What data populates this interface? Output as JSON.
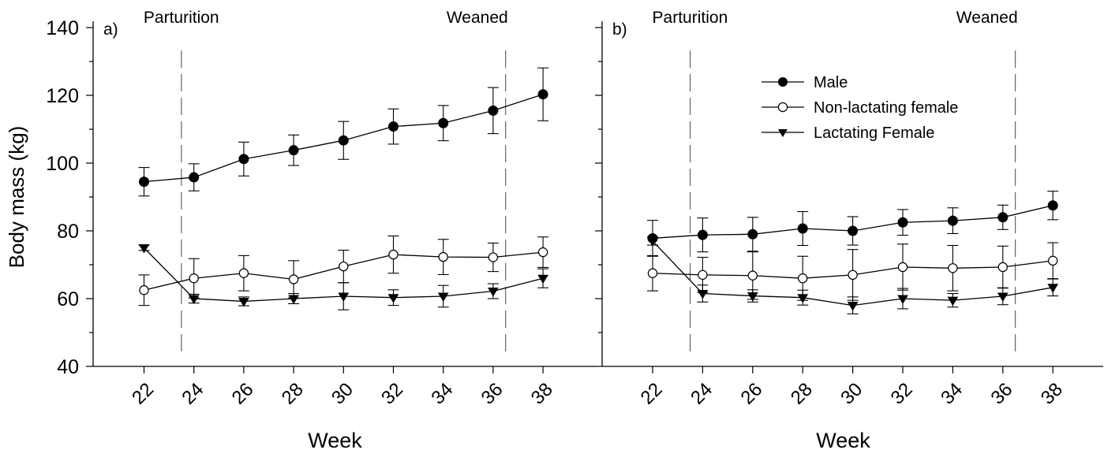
{
  "figure": {
    "ylabel": "Body mass (kg)"
  },
  "chart_data": [
    {
      "type": "line",
      "panel_label": "a)",
      "xlabel": "Week",
      "ylabel": "Body mass (kg)",
      "x": [
        22,
        24,
        26,
        28,
        30,
        32,
        34,
        36,
        38
      ],
      "xticks": [
        "22",
        "24",
        "26",
        "28",
        "30",
        "32",
        "34",
        "36",
        "38"
      ],
      "ylim": [
        40,
        140
      ],
      "yticks": [
        "40",
        "60",
        "80",
        "100",
        "120",
        "140"
      ],
      "show_ytick_labels": true,
      "grid": false,
      "annotations": [
        {
          "text": "Parturition",
          "x": 23.5
        },
        {
          "text": "Weaned",
          "x": 36.5
        }
      ],
      "series": [
        {
          "name": "Male",
          "marker": "filled-circle",
          "values": [
            94.5,
            95.8,
            101.2,
            103.8,
            106.7,
            110.8,
            111.8,
            115.5,
            120.3
          ],
          "errors": [
            4.2,
            4.0,
            5.0,
            4.5,
            5.6,
            5.2,
            5.2,
            6.8,
            7.8
          ]
        },
        {
          "name": "Non-lactating female",
          "marker": "open-circle",
          "values": [
            62.5,
            66.0,
            67.5,
            65.7,
            69.5,
            73.0,
            72.3,
            72.2,
            73.7
          ],
          "errors": [
            4.5,
            5.8,
            5.2,
            5.5,
            4.8,
            5.5,
            5.2,
            4.2,
            4.5
          ]
        },
        {
          "name": "Lactating Female",
          "marker": "filled-triangle-down",
          "values": [
            75.0,
            60.0,
            59.2,
            60.0,
            60.7,
            60.3,
            60.7,
            62.2,
            66.0
          ],
          "errors": [
            0.8,
            1.3,
            1.3,
            1.5,
            4.0,
            2.3,
            3.2,
            2.2,
            2.8
          ]
        }
      ]
    },
    {
      "type": "line",
      "panel_label": "b)",
      "xlabel": "Week",
      "ylabel": "Body mass (kg)",
      "x": [
        22,
        24,
        26,
        28,
        30,
        32,
        34,
        36,
        38
      ],
      "xticks": [
        "22",
        "24",
        "26",
        "28",
        "30",
        "32",
        "34",
        "36",
        "38"
      ],
      "ylim": [
        40,
        140
      ],
      "yticks": [
        "40",
        "60",
        "80",
        "100",
        "120",
        "140"
      ],
      "show_ytick_labels": false,
      "grid": false,
      "legend": {
        "position": "top-center"
      },
      "annotations": [
        {
          "text": "Parturition",
          "x": 23.5
        },
        {
          "text": "Weaned",
          "x": 36.5
        }
      ],
      "series": [
        {
          "name": "Male",
          "marker": "filled-circle",
          "values": [
            77.8,
            78.8,
            79.0,
            80.7,
            80.0,
            82.5,
            83.0,
            84.0,
            87.5
          ],
          "errors": [
            5.3,
            5.0,
            5.0,
            5.0,
            4.2,
            3.8,
            3.8,
            3.6,
            4.2
          ]
        },
        {
          "name": "Non-lactating female",
          "marker": "open-circle",
          "values": [
            67.5,
            67.0,
            66.8,
            66.0,
            67.0,
            69.3,
            69.0,
            69.3,
            71.2
          ],
          "errors": [
            5.2,
            5.2,
            7.0,
            6.5,
            7.5,
            6.8,
            6.7,
            6.2,
            5.3
          ]
        },
        {
          "name": "Lactating Female",
          "marker": "filled-triangle-down",
          "values": [
            77.0,
            61.5,
            60.8,
            60.3,
            58.0,
            60.0,
            59.5,
            60.7,
            63.3
          ],
          "errors": [
            1.2,
            2.5,
            1.8,
            2.2,
            2.5,
            3.0,
            2.0,
            2.5,
            2.5
          ]
        }
      ]
    }
  ]
}
